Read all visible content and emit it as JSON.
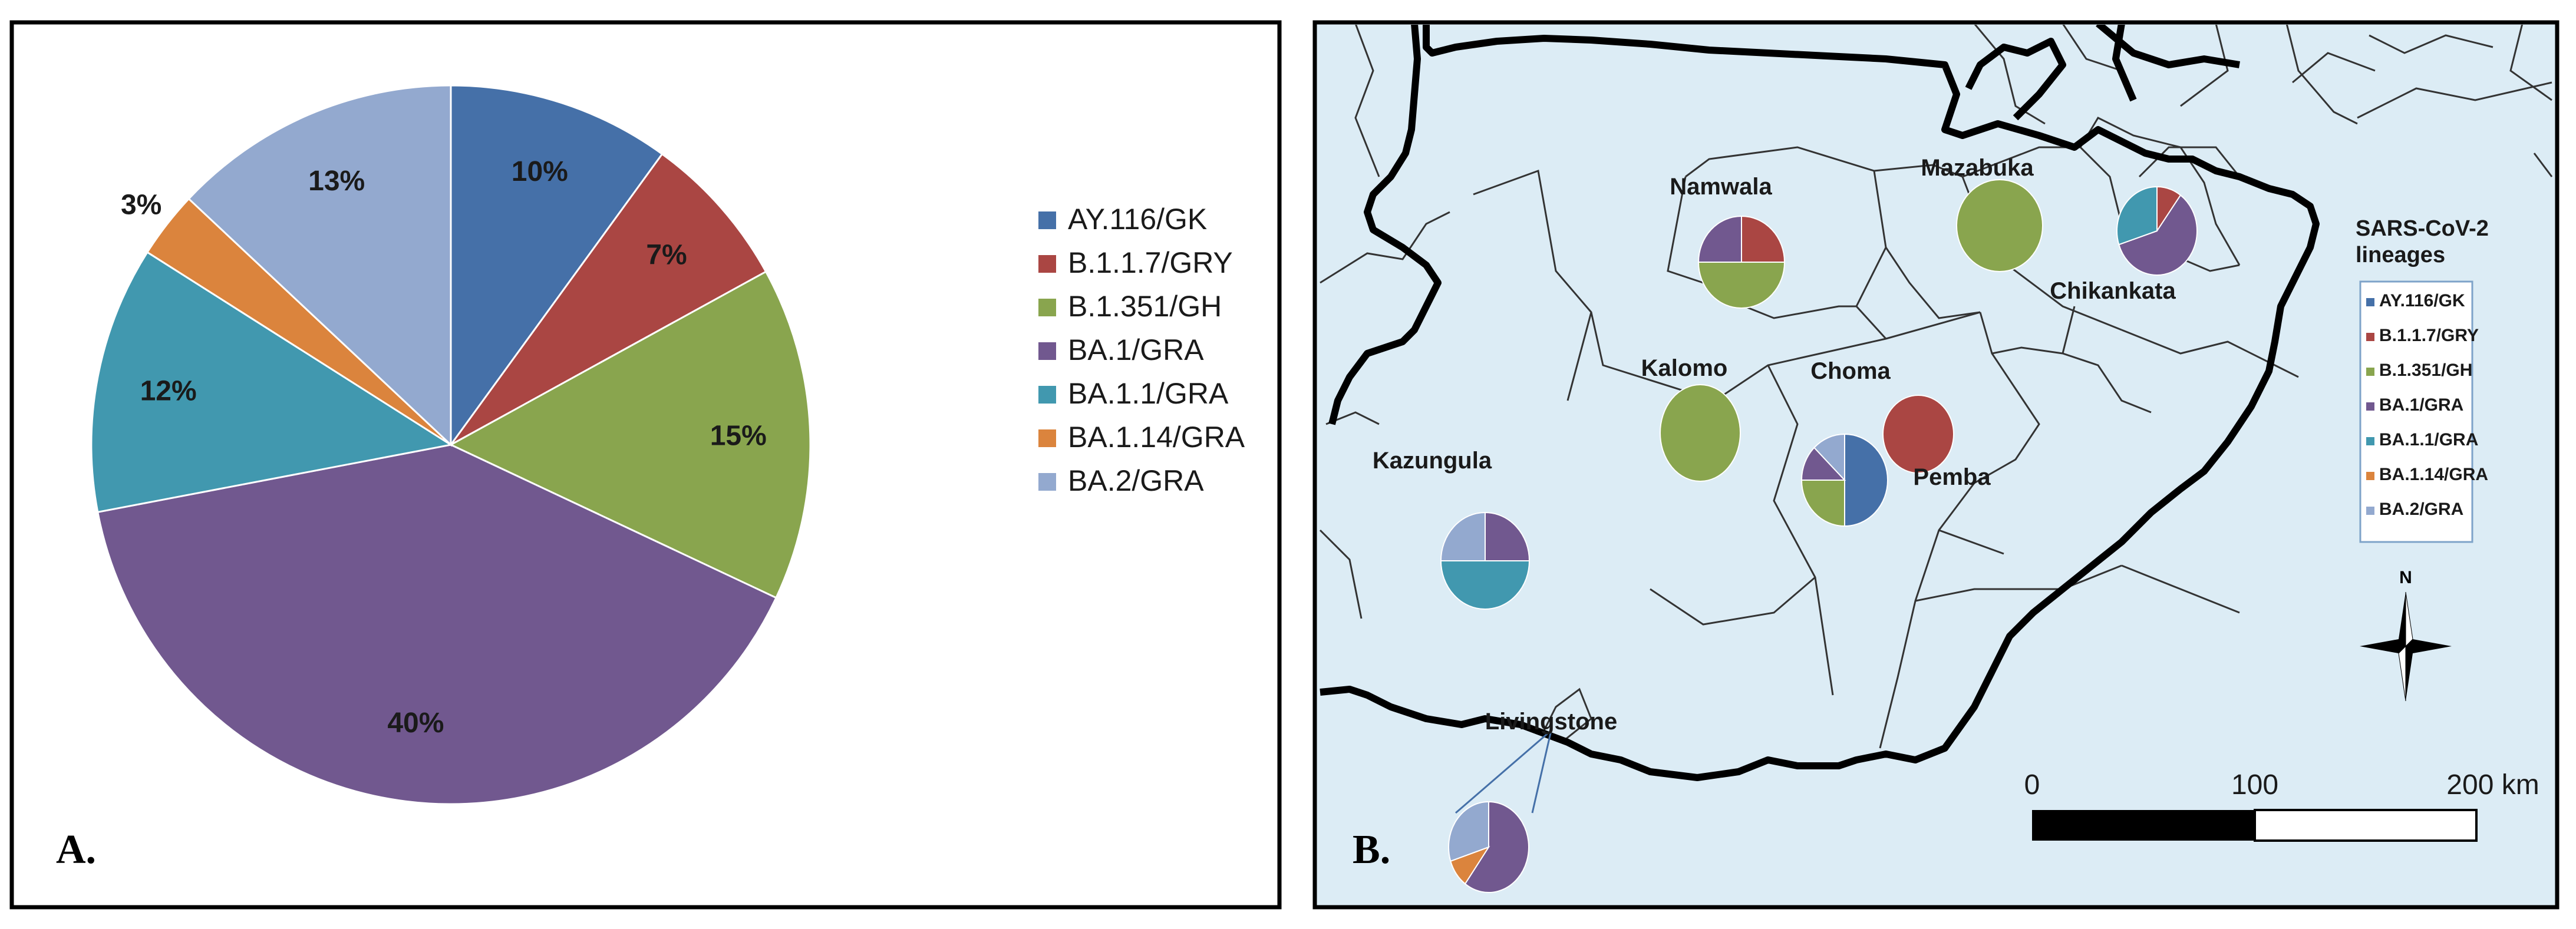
{
  "colors": {
    "AY.116/GK": "#4570A8",
    "B.1.1.7/GRY": "#AA4643",
    "B.1.351/GH": "#89A54E",
    "BA.1/GRA": "#71588F",
    "BA.1.1/GRA": "#4198AF",
    "BA.1.14/GRA": "#DB843D",
    "BA.2/GRA": "#93A9CF",
    "land": "#DCECF5",
    "boundary": "#333333"
  },
  "chart_data": [
    {
      "type": "pie",
      "panel_label": "A.",
      "categories": [
        "AY.116/GK",
        "B.1.1.7/GRY",
        "B.1.351/GH",
        "BA.1/GRA",
        "BA.1.1/GRA",
        "BA.1.14/GRA",
        "BA.2/GRA"
      ],
      "values": [
        10,
        7,
        15,
        40,
        12,
        3,
        13
      ],
      "labels": [
        "10%",
        "7%",
        "15%",
        "40%",
        "12%",
        "3%",
        "13%"
      ],
      "legend_position": "right"
    },
    {
      "type": "map",
      "panel_label": "B.",
      "legend_title": "SARS-CoV-2 lineages",
      "legend_entries": [
        "AY.116/GK",
        "B.1.1.7/GRY",
        "B.1.351/GH",
        "BA.1/GRA",
        "BA.1.1/GRA",
        "BA.1.14/GRA",
        "BA.2/GRA"
      ],
      "north_label": "N",
      "scale_labels": [
        "0",
        "100",
        "200 km"
      ],
      "districts": [
        {
          "name": "Namwala",
          "shares": {
            "BA.1/GRA": 25,
            "B.1.1.7/GRY": 25,
            "B.1.351/GH": 50
          }
        },
        {
          "name": "Mazabuka",
          "shares": {
            "B.1.351/GH": 100
          }
        },
        {
          "name": "Chikankata",
          "shares": {
            "B.1.1.7/GRY": 10,
            "BA.1/GRA": 60,
            "BA.1.1/GRA": 30
          }
        },
        {
          "name": "Kalomo",
          "shares": {
            "B.1.351/GH": 100
          }
        },
        {
          "name": "Choma",
          "shares": {
            "AY.116/GK": 50,
            "B.1.351/GH": 25,
            "BA.1/GRA": 12.5,
            "BA.2/GRA": 12.5
          }
        },
        {
          "name": "Pemba",
          "shares": {
            "B.1.1.7/GRY": 100
          }
        },
        {
          "name": "Kazungula",
          "shares": {
            "BA.1/GRA": 25,
            "BA.1.1/GRA": 50,
            "BA.2/GRA": 25
          }
        },
        {
          "name": "Livingstone",
          "shares": {
            "BA.1/GRA": 60,
            "BA.1.14/GRA": 10,
            "BA.2/GRA": 30
          }
        }
      ]
    }
  ]
}
